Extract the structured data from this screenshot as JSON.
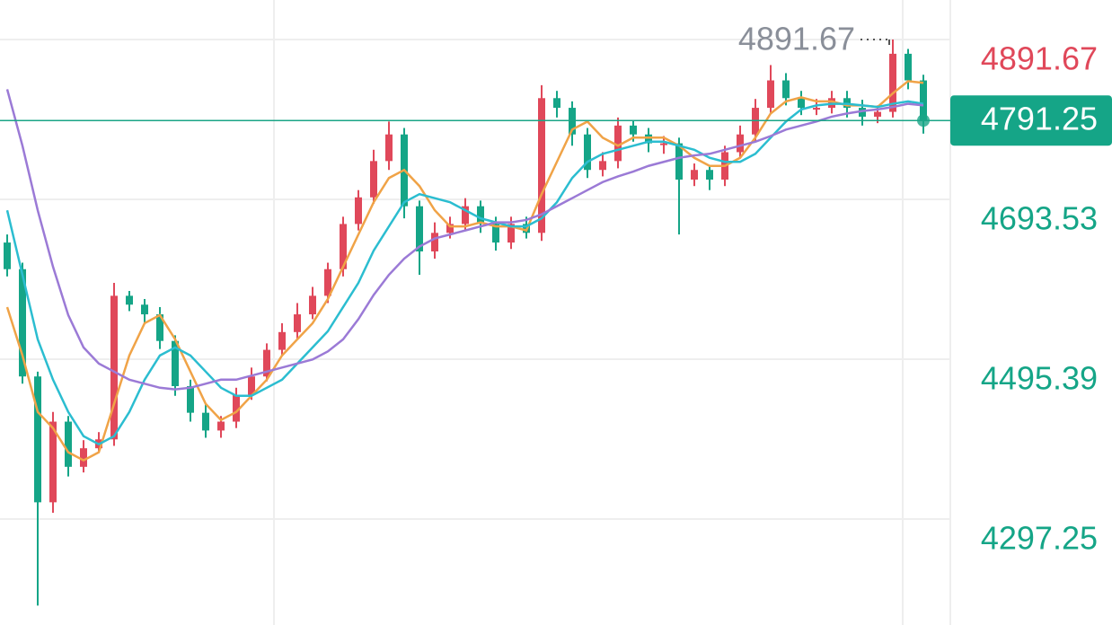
{
  "chart_data": {
    "type": "candlestick",
    "open": [
      4640,
      4607,
      4474,
      4318,
      4418,
      4362,
      4385,
      4396,
      4574,
      4563,
      4551,
      4518,
      4462,
      4429,
      4407,
      4418,
      4451,
      4474,
      4507,
      4529,
      4551,
      4574,
      4607,
      4663,
      4696,
      4741,
      4774,
      4685,
      4629,
      4652,
      4663,
      4685,
      4663,
      4640,
      4663,
      4652,
      4819,
      4807,
      4774,
      4730,
      4741,
      4785,
      4774,
      4763,
      4763,
      4718,
      4730,
      4718,
      4752,
      4774,
      4807,
      4841,
      4819,
      4807,
      4807,
      4819,
      4807,
      4796,
      4802,
      4874,
      4841
    ],
    "high": [
      4650,
      4615,
      4480,
      4430,
      4425,
      4395,
      4405,
      4590,
      4580,
      4570,
      4560,
      4525,
      4470,
      4440,
      4425,
      4460,
      4485,
      4515,
      4540,
      4565,
      4585,
      4615,
      4672,
      4705,
      4755,
      4790,
      4782,
      4692,
      4665,
      4672,
      4695,
      4692,
      4672,
      4672,
      4672,
      4835,
      4828,
      4815,
      4782,
      4752,
      4795,
      4792,
      4782,
      4772,
      4770,
      4738,
      4735,
      4760,
      4785,
      4818,
      4860,
      4850,
      4828,
      4818,
      4828,
      4828,
      4817,
      4810,
      4891.67,
      4880,
      4848
    ],
    "low": [
      4598,
      4465,
      4190,
      4305,
      4350,
      4355,
      4380,
      4388,
      4555,
      4540,
      4508,
      4450,
      4418,
      4398,
      4398,
      4410,
      4445,
      4468,
      4500,
      4520,
      4545,
      4565,
      4598,
      4655,
      4688,
      4730,
      4670,
      4600,
      4620,
      4645,
      4655,
      4652,
      4630,
      4632,
      4645,
      4642,
      4795,
      4760,
      4720,
      4722,
      4732,
      4765,
      4752,
      4750,
      4650,
      4710,
      4705,
      4710,
      4745,
      4765,
      4800,
      4810,
      4798,
      4798,
      4800,
      4795,
      4785,
      4788,
      4795,
      4830,
      4775
    ],
    "close": [
      4607,
      4474,
      4318,
      4418,
      4362,
      4385,
      4396,
      4574,
      4563,
      4551,
      4518,
      4462,
      4429,
      4407,
      4418,
      4451,
      4474,
      4507,
      4529,
      4551,
      4574,
      4607,
      4663,
      4696,
      4741,
      4774,
      4685,
      4629,
      4652,
      4663,
      4685,
      4663,
      4640,
      4663,
      4652,
      4819,
      4807,
      4774,
      4730,
      4741,
      4785,
      4774,
      4763,
      4763,
      4718,
      4730,
      4718,
      4752,
      4774,
      4807,
      4841,
      4819,
      4807,
      4807,
      4819,
      4807,
      4796,
      4802,
      4874,
      4841,
      4791.25
    ],
    "up_color": "#e0485a",
    "down_color": "#15a587",
    "series": [
      {
        "color": "#f0a347",
        "values": [
          4560,
          4500,
          4430,
          4410,
          4380,
          4370,
          4380,
          4440,
          4500,
          4540,
          4550,
          4520,
          4480,
          4440,
          4420,
          4430,
          4450,
          4470,
          4500,
          4520,
          4540,
          4570,
          4610,
          4650,
          4690,
          4720,
          4730,
          4710,
          4680,
          4660,
          4660,
          4665,
          4660,
          4660,
          4655,
          4700,
          4740,
          4780,
          4790,
          4770,
          4760,
          4770,
          4770,
          4770,
          4760,
          4745,
          4735,
          4735,
          4745,
          4770,
          4800,
          4815,
          4820,
          4815,
          4815,
          4810,
          4810,
          4808,
          4825,
          4840,
          4838
        ]
      },
      {
        "color": "#2bbdd0",
        "values": [
          4680,
          4600,
          4520,
          4470,
          4430,
          4400,
          4390,
          4400,
          4430,
          4470,
          4500,
          4510,
          4500,
          4480,
          4460,
          4450,
          4450,
          4460,
          4470,
          4490,
          4510,
          4530,
          4560,
          4590,
          4630,
          4660,
          4690,
          4700,
          4695,
          4690,
          4680,
          4670,
          4665,
          4660,
          4660,
          4670,
          4690,
          4720,
          4740,
          4750,
          4755,
          4760,
          4765,
          4765,
          4760,
          4755,
          4745,
          4740,
          4740,
          4750,
          4770,
          4790,
          4805,
          4810,
          4812,
          4812,
          4810,
          4808,
          4812,
          4815,
          4812
        ]
      },
      {
        "color": "#9b7ad6",
        "values": [
          4830,
          4760,
          4680,
          4610,
          4550,
          4510,
          4490,
          4480,
          4470,
          4465,
          4460,
          4458,
          4460,
          4465,
          4470,
          4470,
          4475,
          4480,
          4485,
          4490,
          4495,
          4505,
          4520,
          4545,
          4575,
          4600,
          4620,
          4635,
          4645,
          4650,
          4655,
          4660,
          4665,
          4665,
          4668,
          4675,
          4685,
          4695,
          4705,
          4715,
          4722,
          4728,
          4735,
          4740,
          4745,
          4748,
          4750,
          4755,
          4760,
          4765,
          4772,
          4780,
          4785,
          4790,
          4796,
          4800,
          4803,
          4805,
          4808,
          4812,
          4810
        ]
      }
    ],
    "ylim": [
      4165.9,
      4940.65
    ],
    "yticks": [
      4891.67,
      4693.53,
      4495.39,
      4297.25
    ],
    "grid": true
  }
}
